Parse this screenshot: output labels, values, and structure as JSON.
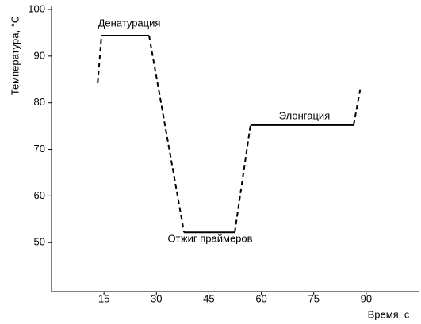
{
  "chart_data": {
    "type": "line",
    "xlabel": "Время, с",
    "ylabel": "Температура, °C",
    "xlim": [
      0,
      105
    ],
    "ylim": [
      39.5,
      100
    ],
    "xticks": [
      15,
      30,
      45,
      60,
      75,
      90
    ],
    "yticks": [
      50,
      60,
      70,
      80,
      90,
      100
    ],
    "grid": false,
    "color": "#000000",
    "series": [
      {
        "line_style": "dashed",
        "x": [
          13.2,
          14.3,
          null,
          27.9,
          37.9,
          null,
          52.4,
          56.9,
          null,
          86.4,
          88.4
        ],
        "values": [
          84.2,
          94.4,
          null,
          94.4,
          52.2,
          null,
          52.2,
          75.2,
          null,
          75.2,
          83.3
        ]
      },
      {
        "line_style": "solid",
        "x": [
          14.3,
          27.9,
          null,
          37.9,
          52.4,
          null,
          56.9,
          86.4
        ],
        "values": [
          94.4,
          94.4,
          null,
          52.2,
          52.2,
          null,
          75.2,
          75.2
        ]
      }
    ],
    "annotations": [
      "Денатурация",
      "Отжиг праймеров",
      "Элонгация"
    ]
  }
}
